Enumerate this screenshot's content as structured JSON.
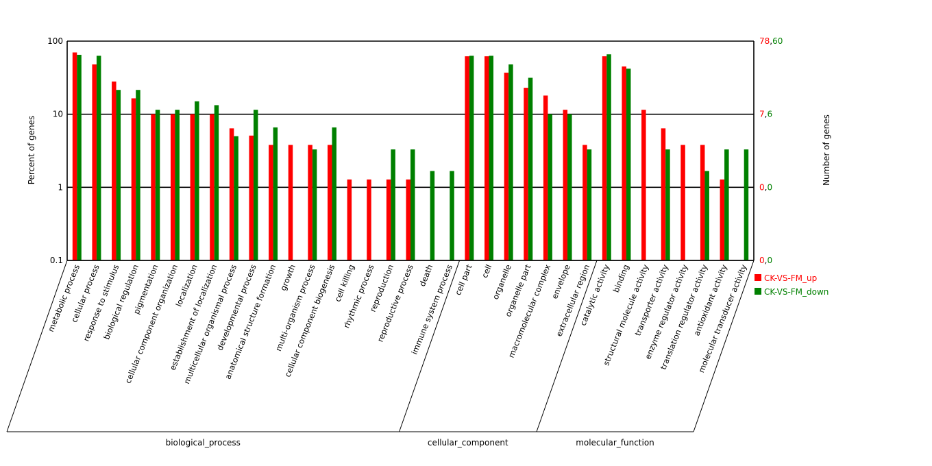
{
  "chart_data": {
    "type": "bar",
    "ylabel": "Percent of genes",
    "y2label": "Number of genes",
    "yscale": "log",
    "ylim": [
      0.1,
      100
    ],
    "left_ticks": [
      "100",
      "10",
      "1",
      "0.1"
    ],
    "right_ticks": [
      {
        "up": "78",
        "down": "60"
      },
      {
        "up": "7",
        "down": "6"
      },
      {
        "up": "0",
        "down": "0"
      },
      {
        "up": "0",
        "down": "0"
      }
    ],
    "colors": {
      "up": "#ff0000",
      "down": "#008000"
    },
    "legend_placement": "right",
    "categories": [
      "metabolic process",
      "cellular process",
      "response to stimulus",
      "biological regulation",
      "pigmentation",
      "cellular component organization",
      "localization",
      "establishment of localization",
      "multicellular organismal process",
      "developmental process",
      "anatomical structure formation",
      "growth",
      "multi-organism process",
      "cellular component biogenesis",
      "cell killing",
      "rhythmic process",
      "reproduction",
      "reproductive process",
      "death",
      "immune system process",
      "cell part",
      "cell",
      "organelle",
      "organelle part",
      "macromolecular complex",
      "envelope",
      "extracellular region",
      "catalytic activity",
      "binding",
      "structural molecule activity",
      "transporter activity",
      "enzyme regulator activity",
      "translation regulator activity",
      "antioxidant activity",
      "molecular transducer activity"
    ],
    "series": [
      {
        "name": "CK-VS-FM_up",
        "values": [
          70,
          48,
          28,
          16.5,
          10,
          10,
          10,
          10,
          6.4,
          5.1,
          3.8,
          3.8,
          3.8,
          3.8,
          1.28,
          1.28,
          1.28,
          1.28,
          null,
          null,
          62,
          62,
          37,
          23,
          18,
          11.5,
          3.8,
          62,
          45,
          11.5,
          6.4,
          3.8,
          3.8,
          1.28,
          null
        ]
      },
      {
        "name": "CK-VS-FM_down",
        "values": [
          65,
          63,
          21.5,
          21.5,
          11.5,
          11.5,
          15,
          13.3,
          5,
          11.5,
          6.6,
          null,
          3.3,
          6.6,
          null,
          null,
          3.3,
          3.3,
          1.67,
          1.67,
          63,
          63,
          48,
          31.5,
          10,
          10,
          3.3,
          66,
          42,
          null,
          3.3,
          null,
          1.67,
          3.3,
          3.3
        ]
      }
    ],
    "groups": [
      {
        "name": "biological_process",
        "start": 0,
        "end": 19
      },
      {
        "name": "cellular_component",
        "start": 20,
        "end": 26
      },
      {
        "name": "molecular_function",
        "start": 27,
        "end": 34
      }
    ]
  }
}
